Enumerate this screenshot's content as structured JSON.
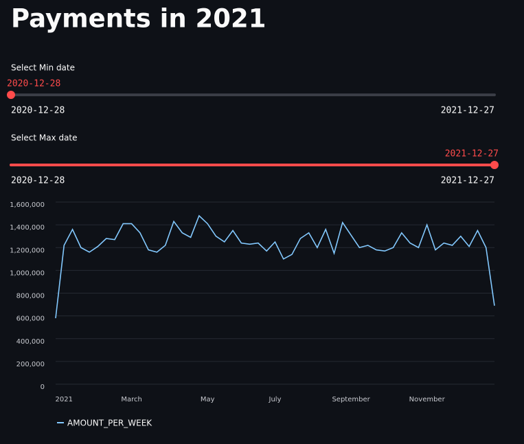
{
  "header": {
    "title": "Payments in 2021"
  },
  "sliders": [
    {
      "label": "Select Min date",
      "value": "2020-12-28",
      "min": "2020-12-28",
      "max": "2021-12-27"
    },
    {
      "label": "Select Max date",
      "value": "2021-12-27",
      "min": "2020-12-28",
      "max": "2021-12-27"
    }
  ],
  "chart_data": {
    "type": "line",
    "categories": [
      null,
      "2021",
      null,
      null,
      null,
      null,
      null,
      null,
      null,
      "March",
      null,
      null,
      null,
      null,
      null,
      null,
      null,
      null,
      "May",
      null,
      null,
      null,
      null,
      null,
      null,
      null,
      "July",
      null,
      null,
      null,
      null,
      null,
      null,
      null,
      null,
      "September",
      null,
      null,
      null,
      null,
      null,
      null,
      null,
      null,
      "November",
      null,
      null,
      null,
      null,
      null,
      null,
      null,
      null
    ],
    "series": [
      {
        "name": "AMOUNT_PER_WEEK",
        "color": "#83c9ff",
        "values": [
          580000,
          1220000,
          1360000,
          1200000,
          1160000,
          1210000,
          1280000,
          1270000,
          1410000,
          1410000,
          1330000,
          1180000,
          1160000,
          1220000,
          1430000,
          1330000,
          1290000,
          1480000,
          1410000,
          1300000,
          1250000,
          1350000,
          1240000,
          1230000,
          1240000,
          1170000,
          1250000,
          1100000,
          1140000,
          1280000,
          1330000,
          1200000,
          1360000,
          1150000,
          1420000,
          1310000,
          1200000,
          1220000,
          1180000,
          1170000,
          1200000,
          1330000,
          1240000,
          1200000,
          1400000,
          1180000,
          1240000,
          1220000,
          1300000,
          1210000,
          1350000,
          1200000,
          690000
        ]
      }
    ],
    "ylim": [
      0,
      1600000
    ],
    "yticks": [
      0,
      {
        "value": 200000,
        "label": "200,000"
      },
      {
        "value": 400000,
        "label": "400,000"
      },
      {
        "value": 600000,
        "label": "600,000"
      },
      {
        "value": 800000,
        "label": "800,000"
      },
      {
        "value": 1000000,
        "label": "1,000,000"
      },
      {
        "value": 1200000,
        "label": "1,200,000"
      },
      {
        "value": 1400000,
        "label": "1,400,000"
      },
      {
        "value": 1600000,
        "label": "1,600,000"
      }
    ],
    "grid": true
  }
}
